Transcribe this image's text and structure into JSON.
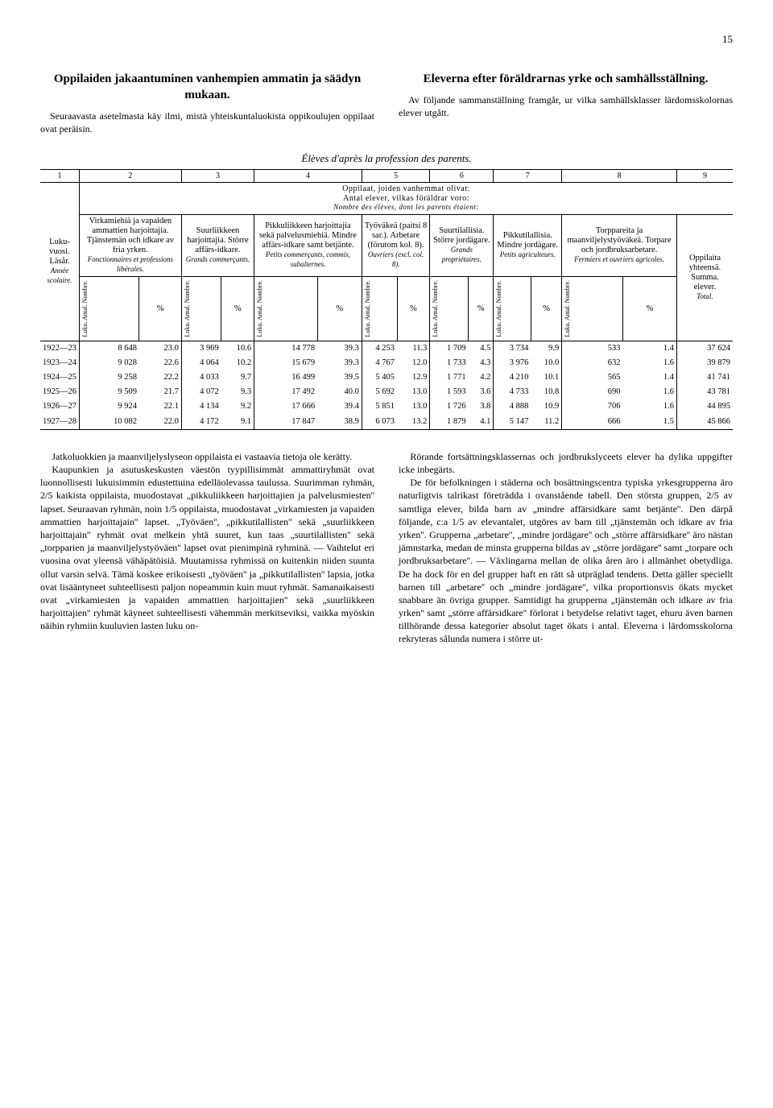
{
  "page_number": "15",
  "left_title": "Oppilaiden jakaantuminen vanhempien ammatin ja säädyn mukaan.",
  "left_intro": "Seuraavasta asetelmasta käy ilmi, mistä yhteiskuntaluokista oppikoulujen oppilaat ovat peräisin.",
  "right_title": "Eleverna efter föräldrarnas yrke och samhällsställning.",
  "right_intro": "Av följande sammanställning framgår, ur vilka samhällsklasser lärdomsskolornas elever utgått.",
  "table_caption": "Élèves d'après la profession des parents.",
  "col_nums": [
    "1",
    "2",
    "3",
    "4",
    "5",
    "6",
    "7",
    "8",
    "9"
  ],
  "span_header_1": "Oppilaat, joiden vanhemmat olivat:",
  "span_header_2": "Antal elever, vilkas föräldrar voro:",
  "span_header_3": "Nombre des élèves, dont les parents étaient:",
  "row_label": {
    "l1": "Luku-",
    "l2": "vuosi.",
    "l3": "Läsår.",
    "l4": "Année",
    "l5": "scolaire."
  },
  "headers": {
    "c2": "Virkamiehiä ja vapaiden ammattien harjoittajia. Tjänstemän och idkare av fria yrken.",
    "c2i": "Fonctionnaires et professions libérales.",
    "c3": "Suurliikkeen harjoittajia. Större affärs-idkare.",
    "c3i": "Grands commerçants.",
    "c4": "Pikkuliikkeen harjoittajia sekä palvelusmiehiä. Mindre affärs-idkare samt betjänte.",
    "c4i": "Petits commerçants, commis, subalternes.",
    "c5": "Työväkeä (paitsi 8 sar.). Arbetare (förutom kol. 8).",
    "c5i": "Ouvriers (excl. col. 8).",
    "c6": "Suurtilallisia. Större jordägare.",
    "c6i": "Grands propriétaires.",
    "c7": "Pikkutilallisia. Mindre jordägare.",
    "c7i": "Petits agriculteurs.",
    "c8": "Torppareita ja maanviljelystyöväkeä. Torpare och jordbruksarbetare.",
    "c8i": "Fermiers et ouvriers agricoles.",
    "c9": "Oppilaita yhteensä. Summa. elever.",
    "c9i": "Total."
  },
  "sub_luku": "Luku. Antal. Nombre.",
  "sub_pct": "%",
  "rows": [
    {
      "year": "1922—23",
      "v": [
        "8 648",
        "23.0",
        "3 969",
        "10.6",
        "14 778",
        "39.3",
        "4 253",
        "11.3",
        "1 709",
        "4.5",
        "3 734",
        "9.9",
        "533",
        "1.4",
        "37 624"
      ]
    },
    {
      "year": "1923—24",
      "v": [
        "9 028",
        "22.6",
        "4 064",
        "10.2",
        "15 679",
        "39.3",
        "4 767",
        "12.0",
        "1 733",
        "4.3",
        "3 976",
        "10.0",
        "632",
        "1.6",
        "39 879"
      ]
    },
    {
      "year": "1924—25",
      "v": [
        "9 258",
        "22.2",
        "4 033",
        "9.7",
        "16 499",
        "39.5",
        "5 405",
        "12.9",
        "1 771",
        "4.2",
        "4 210",
        "10.1",
        "565",
        "1.4",
        "41 741"
      ]
    },
    {
      "year": "1925—26",
      "v": [
        "9 509",
        "21.7",
        "4 072",
        "9.3",
        "17 492",
        "40.0",
        "5 692",
        "13.0",
        "1 593",
        "3.6",
        "4 733",
        "10.8",
        "690",
        "1.6",
        "43 781"
      ]
    },
    {
      "year": "1926—27",
      "v": [
        "9 924",
        "22.1",
        "4 134",
        "9.2",
        "17 666",
        "39.4",
        "5 851",
        "13.0",
        "1 726",
        "3.8",
        "4 888",
        "10.9",
        "706",
        "1.6",
        "44 895"
      ]
    },
    {
      "year": "1927—28",
      "v": [
        "10 082",
        "22.0",
        "4 172",
        "9.1",
        "17 847",
        "38.9",
        "6 073",
        "13.2",
        "1 879",
        "4.1",
        "5 147",
        "11.2",
        "666",
        "1.5",
        "45 866"
      ]
    }
  ],
  "body_left": "Jatkoluokkien ja maanviljelyslyseon oppilaista ei vastaavia tietoja ole kerätty.\nKaupunkien ja asutuskeskusten väestön tyypillisimmät ammattiryhmät ovat luonnollisesti lukuisimmin edustettuina edelläolevassa taulussa. Suurimman ryhmän, 2/5 kaikista oppilaista, muodostavat „pikkuliikkeen harjoittajien ja palvelusmiesten'' lapset. Seuraavan ryhmän, noin 1/5 oppilaista, muodostavat „virkamiesten ja vapaiden ammattien harjoittajain'' lapset. „Työväen'', „pikkutilallisten'' sekä „suurliikkeen harjoittajain'' ryhmät ovat melkein yhtä suuret, kun taas „suurtilallisten'' sekä „torpparien ja maanviljelystyöväen'' lapset ovat pienimpinä ryhminä. — Vaihtelut eri vuosina ovat yleensä vähäpätöisiä. Muutamissa ryhmissä on kuitenkin niiden suunta ollut varsin selvä. Tämä koskee erikoisesti „työväen'' ja „pikkutilallisten'' lapsia, jotka ovat lisääntyneet suhteellisesti paljon nopeammin kuin muut ryhmät. Samanaikaisesti ovat „virkamiesten ja vapaiden ammattien harjoittajien'' sekä „suurliikkeen harjoittajien'' ryhmät käyneet suhteellisesti vähemmän merkitseviksi, vaikka myöskin näihin ryhmiin kuuluvien lasten luku on-",
  "body_right": "Rörande fortsättningsklassernas och jordbrukslyceets elever ha dylika uppgifter icke inbegärts.\nDe för befolkningen i städerna och bosättningscentra typiska yrkesgrupperna äro naturligtvis talrikast företrädda i ovanstående tabell. Den största gruppen, 2/5 av samtliga elever, bilda barn av „mindre affärsidkare samt betjänte''. Den därpå följande, c:a 1/5 av elevantalet, utgöres av barn till „tjänstemän och idkare av fria yrken''. Grupperna „arbetare'', „mindre jordägare'' och „större affärsidkare'' äro nästan jämnstarka, medan de minsta grupperna bildas av „större jordägare'' samt „torpare och jordbruksarbetare''. — Växlingarna mellan de olika åren äro i allmänhet obetydliga. De ha dock för en del grupper haft en rätt så utpräglad tendens. Detta gäller speciellt barnen till „arbetare'' och „mindre jordägare'', vilka proportionsvis ökats mycket snabbare än övriga grupper. Samtidigt ha grupperna „tjänstemän och idkare av fria yrken'' samt „större affärsidkare'' förlorat i betydelse relativt taget, ehuru även barnen tillhörande dessa kategorier absolut taget ökats i antal. Eleverna i lärdomsskolorna rekryteras sålunda numera i större ut-"
}
